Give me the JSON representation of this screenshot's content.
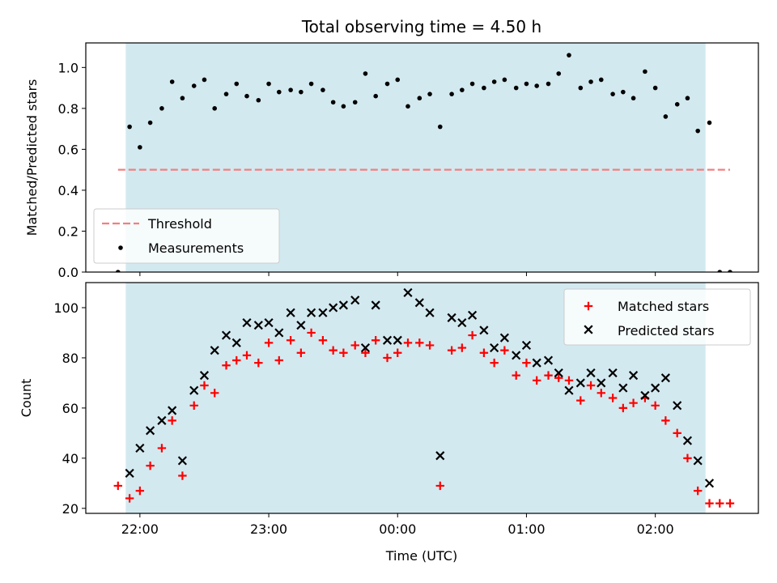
{
  "chart_data": {
    "type": "scatter",
    "title": "Total observing time = 4.50 h",
    "xlabel": "Time (UTC)",
    "x_ticks": [
      "22:00",
      "23:00",
      "00:00",
      "01:00",
      "02:00"
    ],
    "x_tick_values": [
      22.0,
      23.0,
      24.0,
      25.0,
      26.0
    ],
    "xlim": [
      21.58,
      26.8
    ],
    "observing_window": [
      21.89,
      26.39
    ],
    "colors": {
      "window": "#d3e9f0",
      "threshold": "#f08080",
      "measurements": "#000000",
      "matched": "#ff0000",
      "predicted": "#000000"
    },
    "panels": [
      {
        "id": "ratio",
        "ylabel": "Matched/Predicted stars",
        "ylim": [
          0,
          1.12
        ],
        "y_ticks": [
          "0.0",
          "0.2",
          "0.4",
          "0.6",
          "0.8",
          "1.0"
        ],
        "y_tick_values": [
          0,
          0.2,
          0.4,
          0.6,
          0.8,
          1.0
        ],
        "legend": {
          "position": "lower-left",
          "entries": [
            "Threshold",
            "Measurements"
          ]
        },
        "threshold": {
          "name": "Threshold",
          "y": 0.5,
          "x_range": [
            21.83,
            26.58
          ]
        },
        "series": [
          {
            "name": "Measurements",
            "marker": "dot",
            "points": [
              [
                21.83,
                0.0
              ],
              [
                21.92,
                0.71
              ],
              [
                22.0,
                0.61
              ],
              [
                22.08,
                0.73
              ],
              [
                22.17,
                0.8
              ],
              [
                22.25,
                0.93
              ],
              [
                22.33,
                0.85
              ],
              [
                22.42,
                0.91
              ],
              [
                22.5,
                0.94
              ],
              [
                22.58,
                0.8
              ],
              [
                22.67,
                0.87
              ],
              [
                22.75,
                0.92
              ],
              [
                22.83,
                0.86
              ],
              [
                22.92,
                0.84
              ],
              [
                23.0,
                0.92
              ],
              [
                23.08,
                0.88
              ],
              [
                23.17,
                0.89
              ],
              [
                23.25,
                0.88
              ],
              [
                23.33,
                0.92
              ],
              [
                23.42,
                0.89
              ],
              [
                23.5,
                0.83
              ],
              [
                23.58,
                0.81
              ],
              [
                23.67,
                0.83
              ],
              [
                23.75,
                0.97
              ],
              [
                23.83,
                0.86
              ],
              [
                23.92,
                0.92
              ],
              [
                24.0,
                0.94
              ],
              [
                24.08,
                0.81
              ],
              [
                24.17,
                0.85
              ],
              [
                24.25,
                0.87
              ],
              [
                24.33,
                0.71
              ],
              [
                24.42,
                0.87
              ],
              [
                24.5,
                0.89
              ],
              [
                24.58,
                0.92
              ],
              [
                24.67,
                0.9
              ],
              [
                24.75,
                0.93
              ],
              [
                24.83,
                0.94
              ],
              [
                24.92,
                0.9
              ],
              [
                25.0,
                0.92
              ],
              [
                25.08,
                0.91
              ],
              [
                25.17,
                0.92
              ],
              [
                25.25,
                0.97
              ],
              [
                25.33,
                1.06
              ],
              [
                25.42,
                0.9
              ],
              [
                25.5,
                0.93
              ],
              [
                25.58,
                0.94
              ],
              [
                25.67,
                0.87
              ],
              [
                25.75,
                0.88
              ],
              [
                25.83,
                0.85
              ],
              [
                25.92,
                0.98
              ],
              [
                26.0,
                0.9
              ],
              [
                26.08,
                0.76
              ],
              [
                26.17,
                0.82
              ],
              [
                26.25,
                0.85
              ],
              [
                26.33,
                0.69
              ],
              [
                26.42,
                0.73
              ],
              [
                26.5,
                0.0
              ],
              [
                26.58,
                0.0
              ]
            ]
          }
        ]
      },
      {
        "id": "counts",
        "ylabel": "Count",
        "ylim": [
          18,
          110
        ],
        "y_ticks": [
          "20",
          "40",
          "60",
          "80",
          "100"
        ],
        "y_tick_values": [
          20,
          40,
          60,
          80,
          100
        ],
        "legend": {
          "position": "upper-right",
          "entries": [
            "Matched stars",
            "Predicted stars"
          ]
        },
        "series": [
          {
            "name": "Matched stars",
            "marker": "plus",
            "points": [
              [
                21.83,
                29
              ],
              [
                21.92,
                24
              ],
              [
                22.0,
                27
              ],
              [
                22.08,
                37
              ],
              [
                22.17,
                44
              ],
              [
                22.25,
                55
              ],
              [
                22.33,
                33
              ],
              [
                22.42,
                61
              ],
              [
                22.5,
                69
              ],
              [
                22.58,
                66
              ],
              [
                22.67,
                77
              ],
              [
                22.75,
                79
              ],
              [
                22.83,
                81
              ],
              [
                22.92,
                78
              ],
              [
                23.0,
                86
              ],
              [
                23.08,
                79
              ],
              [
                23.17,
                87
              ],
              [
                23.25,
                82
              ],
              [
                23.33,
                90
              ],
              [
                23.42,
                87
              ],
              [
                23.5,
                83
              ],
              [
                23.58,
                82
              ],
              [
                23.67,
                85
              ],
              [
                23.75,
                82
              ],
              [
                23.83,
                87
              ],
              [
                23.92,
                80
              ],
              [
                24.0,
                82
              ],
              [
                24.08,
                86
              ],
              [
                24.17,
                86
              ],
              [
                24.25,
                85
              ],
              [
                24.33,
                29
              ],
              [
                24.42,
                83
              ],
              [
                24.5,
                84
              ],
              [
                24.58,
                89
              ],
              [
                24.67,
                82
              ],
              [
                24.75,
                78
              ],
              [
                24.83,
                83
              ],
              [
                24.92,
                73
              ],
              [
                25.0,
                78
              ],
              [
                25.08,
                71
              ],
              [
                25.17,
                73
              ],
              [
                25.25,
                72
              ],
              [
                25.33,
                71
              ],
              [
                25.42,
                63
              ],
              [
                25.5,
                69
              ],
              [
                25.58,
                66
              ],
              [
                25.67,
                64
              ],
              [
                25.75,
                60
              ],
              [
                25.83,
                62
              ],
              [
                25.92,
                64
              ],
              [
                26.0,
                61
              ],
              [
                26.08,
                55
              ],
              [
                26.17,
                50
              ],
              [
                26.25,
                40
              ],
              [
                26.33,
                27
              ],
              [
                26.42,
                22
              ],
              [
                26.5,
                22
              ],
              [
                26.58,
                22
              ]
            ]
          },
          {
            "name": "Predicted stars",
            "marker": "x",
            "points": [
              [
                21.92,
                34
              ],
              [
                22.0,
                44
              ],
              [
                22.08,
                51
              ],
              [
                22.17,
                55
              ],
              [
                22.25,
                59
              ],
              [
                22.33,
                39
              ],
              [
                22.42,
                67
              ],
              [
                22.5,
                73
              ],
              [
                22.58,
                83
              ],
              [
                22.67,
                89
              ],
              [
                22.75,
                86
              ],
              [
                22.83,
                94
              ],
              [
                22.92,
                93
              ],
              [
                23.0,
                94
              ],
              [
                23.08,
                90
              ],
              [
                23.17,
                98
              ],
              [
                23.25,
                93
              ],
              [
                23.33,
                98
              ],
              [
                23.42,
                98
              ],
              [
                23.5,
                100
              ],
              [
                23.58,
                101
              ],
              [
                23.67,
                103
              ],
              [
                23.75,
                84
              ],
              [
                23.83,
                101
              ],
              [
                23.92,
                87
              ],
              [
                24.0,
                87
              ],
              [
                24.08,
                106
              ],
              [
                24.17,
                102
              ],
              [
                24.25,
                98
              ],
              [
                24.33,
                41
              ],
              [
                24.42,
                96
              ],
              [
                24.5,
                94
              ],
              [
                24.58,
                97
              ],
              [
                24.67,
                91
              ],
              [
                24.75,
                84
              ],
              [
                24.83,
                88
              ],
              [
                24.92,
                81
              ],
              [
                25.0,
                85
              ],
              [
                25.08,
                78
              ],
              [
                25.17,
                79
              ],
              [
                25.25,
                74
              ],
              [
                25.33,
                67
              ],
              [
                25.42,
                70
              ],
              [
                25.5,
                74
              ],
              [
                25.58,
                70
              ],
              [
                25.67,
                74
              ],
              [
                25.75,
                68
              ],
              [
                25.83,
                73
              ],
              [
                25.92,
                65
              ],
              [
                26.0,
                68
              ],
              [
                26.08,
                72
              ],
              [
                26.17,
                61
              ],
              [
                26.25,
                47
              ],
              [
                26.33,
                39
              ],
              [
                26.42,
                30
              ]
            ]
          }
        ]
      }
    ]
  }
}
